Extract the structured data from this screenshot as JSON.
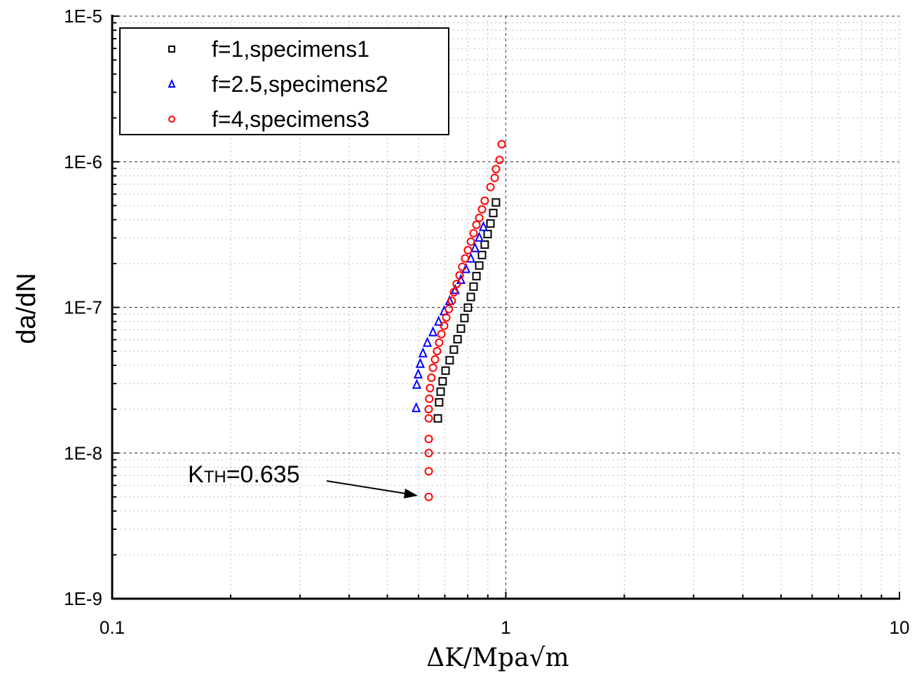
{
  "chart_data": {
    "type": "scatter",
    "title": "",
    "xlabel": "ΔK/Mpa√m",
    "ylabel": "da/dN",
    "xscale": "log",
    "yscale": "log",
    "xlim": [
      0.1,
      10
    ],
    "ylim": [
      1e-09,
      1e-05
    ],
    "xticks": [
      {
        "v": 0.1,
        "label": "0.1"
      },
      {
        "v": 1,
        "label": "1"
      },
      {
        "v": 10,
        "label": "10"
      }
    ],
    "yticks": [
      {
        "v": 1e-09,
        "label": "1E-9"
      },
      {
        "v": 1e-08,
        "label": "1E-8"
      },
      {
        "v": 1e-07,
        "label": "1E-7"
      },
      {
        "v": 1e-06,
        "label": "1E-6"
      },
      {
        "v": 1e-05,
        "label": "1E-5"
      }
    ],
    "grid": true,
    "legend_position": "top-left",
    "series": [
      {
        "name": "f=1,specimens1",
        "marker": "square",
        "color": "#000000",
        "x": [
          0.944,
          0.929,
          0.914,
          0.899,
          0.884,
          0.87,
          0.856,
          0.842,
          0.828,
          0.815,
          0.801,
          0.785,
          0.769,
          0.754,
          0.738,
          0.72,
          0.703,
          0.691,
          0.683,
          0.677,
          0.672
        ],
        "y": [
          5.26e-07,
          4.45e-07,
          3.77e-07,
          3.19e-07,
          2.7e-07,
          2.29e-07,
          1.94e-07,
          1.64e-07,
          1.39e-07,
          1.18e-07,
          9.97e-08,
          8.45e-08,
          7.15e-08,
          6.05e-08,
          5.13e-08,
          4.34e-08,
          3.68e-08,
          3.11e-08,
          2.64e-08,
          2.23e-08,
          1.73e-08
        ]
      },
      {
        "name": "f=2.5,specimens2",
        "marker": "triangle",
        "color": "#0000ff",
        "x": [
          0.877,
          0.856,
          0.835,
          0.815,
          0.792,
          0.769,
          0.744,
          0.72,
          0.697,
          0.675,
          0.653,
          0.632,
          0.616,
          0.606,
          0.599,
          0.594,
          0.592
        ],
        "y": [
          3.57e-07,
          3.02e-07,
          2.56e-07,
          2.17e-07,
          1.84e-07,
          1.55e-07,
          1.32e-07,
          1.11e-07,
          9.44e-08,
          8e-08,
          6.77e-08,
          5.73e-08,
          4.85e-08,
          4.11e-08,
          3.48e-08,
          2.95e-08,
          2.04e-08
        ]
      },
      {
        "name": "f=4,specimens3",
        "marker": "circle",
        "color": "#ff0000",
        "x": [
          0.976,
          0.964,
          0.944,
          0.937,
          0.914,
          0.884,
          0.87,
          0.856,
          0.842,
          0.828,
          0.815,
          0.801,
          0.788,
          0.775,
          0.763,
          0.75,
          0.738,
          0.729,
          0.717,
          0.706,
          0.697,
          0.686,
          0.677,
          0.669,
          0.661,
          0.653,
          0.647,
          0.642,
          0.639,
          0.637,
          0.637,
          0.637,
          0.637,
          0.637,
          0.637
        ],
        "y": [
          1.32e-06,
          1.03e-06,
          8.9e-07,
          7.75e-07,
          6.7e-07,
          5.4e-07,
          4.71e-07,
          4.12e-07,
          3.69e-07,
          3.23e-07,
          2.83e-07,
          2.47e-07,
          2.17e-07,
          1.9e-07,
          1.66e-07,
          1.45e-07,
          1.27e-07,
          1.11e-07,
          9.75e-08,
          8.53e-08,
          7.48e-08,
          6.55e-08,
          5.73e-08,
          5.01e-08,
          4.39e-08,
          3.85e-08,
          3.29e-08,
          2.79e-08,
          2.36e-08,
          2e-08,
          1.73e-08,
          1.25e-08,
          1e-08,
          7.5e-09,
          5e-09
        ]
      }
    ],
    "annotations": [
      {
        "text_main": "K",
        "text_sub": "TH",
        "text_value": "=0.635",
        "points_to": {
          "x": 0.637,
          "y": 5e-09
        }
      }
    ]
  }
}
